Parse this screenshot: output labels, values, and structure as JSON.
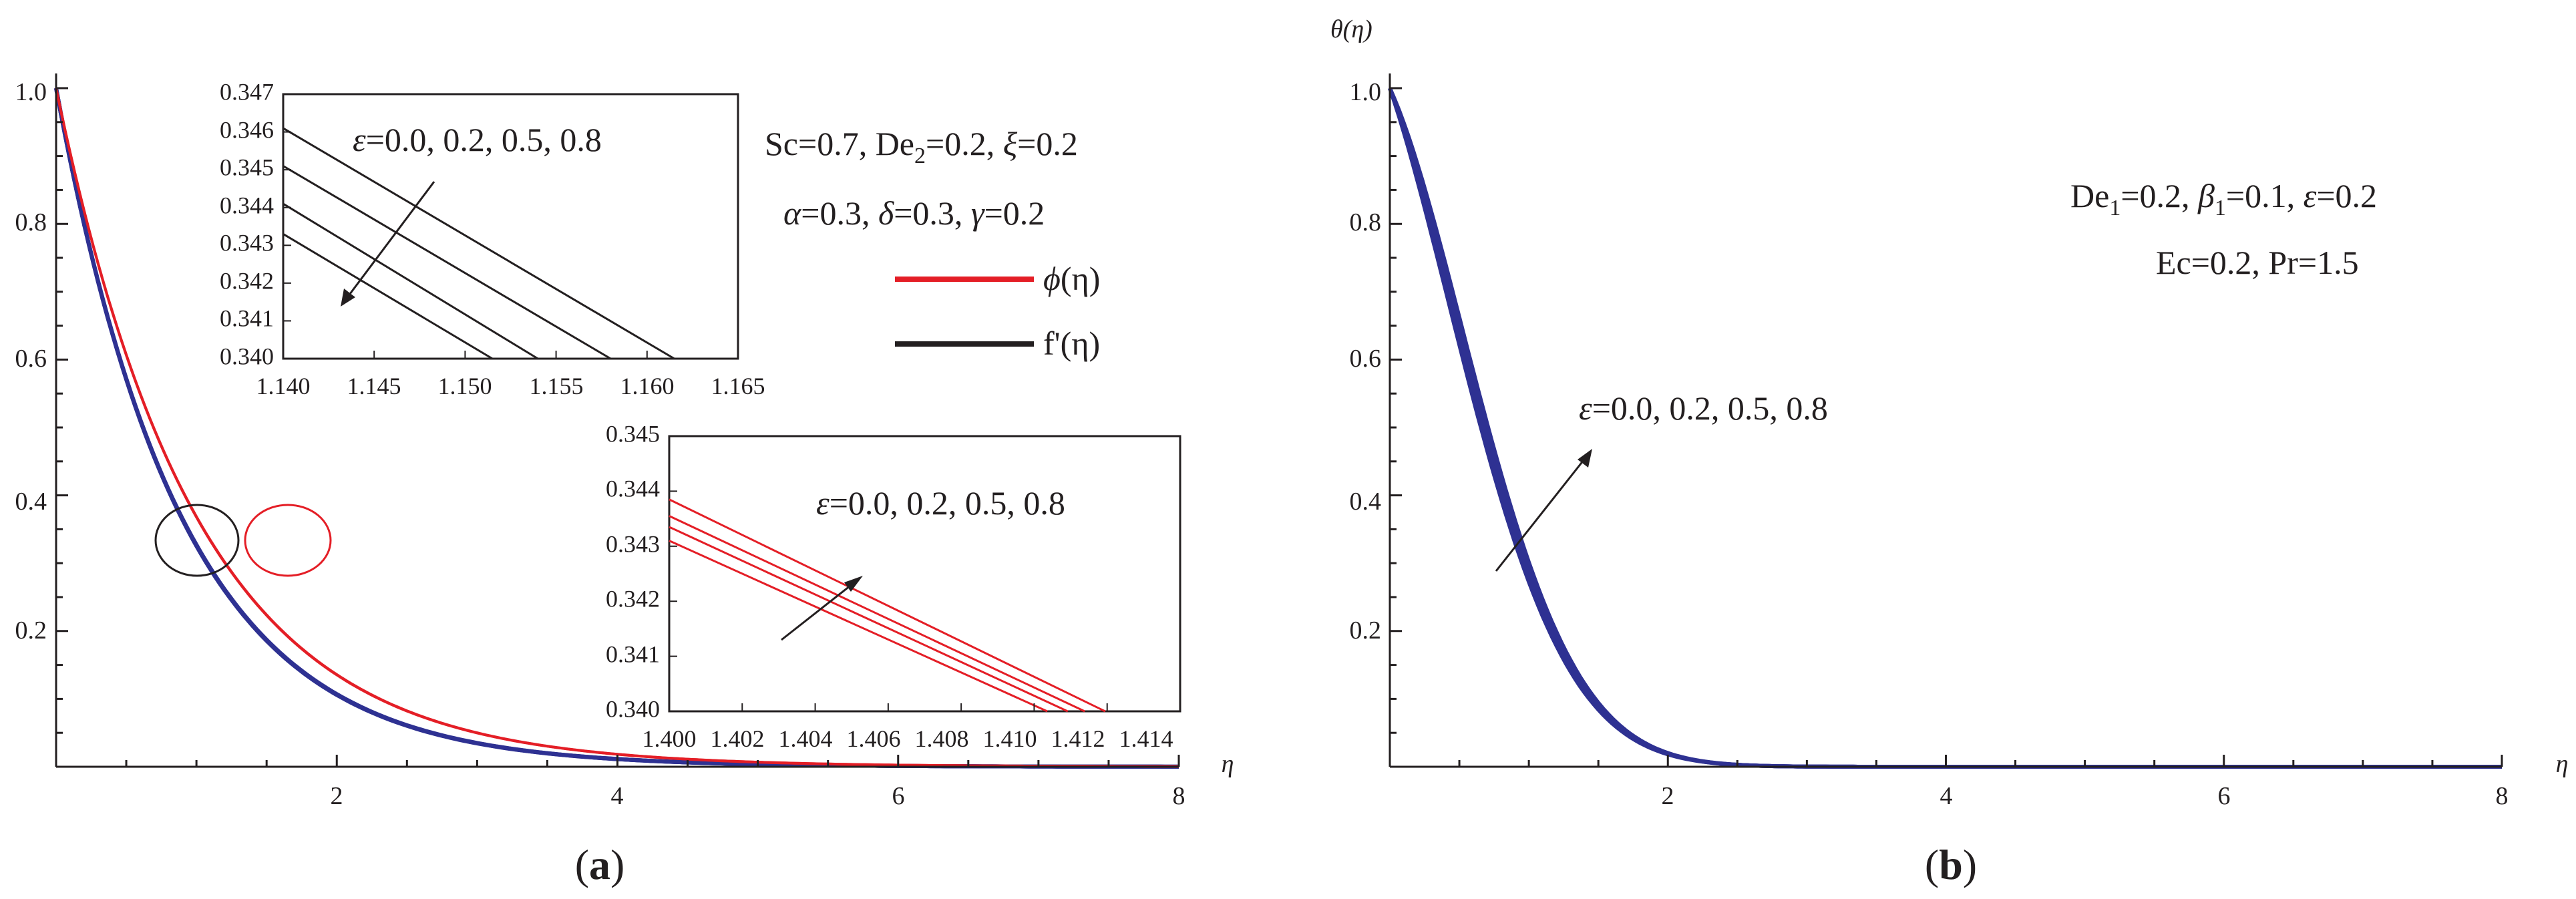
{
  "chart_data": [
    {
      "panel": "a",
      "type": "line",
      "panel_label": {
        "pre": "(",
        "letter": "a",
        "post": ")"
      },
      "xlabel": "η",
      "ylabel": "",
      "xlim": [
        0,
        8
      ],
      "ylim": [
        0,
        1.0
      ],
      "xticks": [
        "2",
        "4",
        "6",
        "8"
      ],
      "yticks": [
        "0.2",
        "0.4",
        "0.6",
        "0.8",
        "1.0"
      ],
      "params_line1": {
        "sc": "Sc=0.7, De",
        "sub": "2",
        "rest": "=0.2, ",
        "xi": "ξ",
        "xival": "=0.2"
      },
      "params_line2": {
        "a": "α",
        "aval": "=0.3, ",
        "d": "δ",
        "dval": "=0.3, ",
        "g": "γ",
        "gval": "=0.2"
      },
      "legend": [
        {
          "label_func": "ϕ",
          "label_arg": "(η)",
          "color": "#e41e26"
        },
        {
          "label_func": "f'",
          "label_arg": "(η)",
          "color": "#231f20"
        }
      ],
      "eps_label": {
        "sym": "ε",
        "text": "=0.0, 0.2, 0.5, 0.8"
      },
      "series": [
        {
          "name": "f'(η) ε=0.0",
          "color": "#2e3192",
          "decay": 1.123
        },
        {
          "name": "f'(η) ε=0.2",
          "color": "#2e3192",
          "decay": 1.121
        },
        {
          "name": "f'(η) ε=0.5",
          "color": "#2e3192",
          "decay": 1.119
        },
        {
          "name": "f'(η) ε=0.8",
          "color": "#2e3192",
          "decay": 1.117
        },
        {
          "name": "ϕ(η) ε=0.0",
          "color": "#e41e26",
          "decay": 1.0
        },
        {
          "name": "ϕ(η) ε=0.2",
          "color": "#e41e26",
          "decay": 0.998
        }
      ],
      "markers": [
        {
          "name": "black-ellipse",
          "center": [
            1.0,
            0.33
          ],
          "color": "#231f20"
        },
        {
          "name": "red-ellipse",
          "center": [
            1.65,
            0.33
          ],
          "color": "#e41e26"
        }
      ],
      "inset_top": {
        "xlim": [
          1.14,
          1.165
        ],
        "ylim": [
          0.34,
          0.347
        ],
        "xticks": [
          "1.140",
          "1.145",
          "1.150",
          "1.155",
          "1.160",
          "1.165"
        ],
        "yticks": [
          "0.340",
          "0.341",
          "0.342",
          "0.343",
          "0.344",
          "0.345",
          "0.346",
          "0.347"
        ],
        "color": "#231f20",
        "lines": [
          {
            "y0": 0.3433,
            "x_end": 1.1515
          },
          {
            "y0": 0.3441,
            "x_end": 1.154
          },
          {
            "y0": 0.3451,
            "x_end": 1.158
          },
          {
            "y0": 0.3461,
            "x_end": 1.1615
          }
        ]
      },
      "inset_bottom": {
        "xlim": [
          1.4,
          1.415
        ],
        "ylim": [
          0.34,
          0.345
        ],
        "xticks": [
          "1.400",
          "1.402",
          "1.404",
          "1.406",
          "1.408",
          "1.410",
          "1.412",
          "1.414"
        ],
        "yticks": [
          "0.340",
          "0.341",
          "0.342",
          "0.343",
          "0.344",
          "0.345"
        ],
        "color": "#e41e26",
        "lines": [
          {
            "y0": 0.34385,
            "x_end": 1.4128
          },
          {
            "y0": 0.34355,
            "x_end": 1.4122
          },
          {
            "y0": 0.34335,
            "x_end": 1.4117
          },
          {
            "y0": 0.3431,
            "x_end": 1.4111
          }
        ]
      }
    },
    {
      "panel": "b",
      "type": "line",
      "panel_label": {
        "pre": "(",
        "letter": "b",
        "post": ")"
      },
      "title": "θ(η)",
      "xlabel": "η",
      "xlim": [
        0,
        8
      ],
      "ylim": [
        0,
        1.0
      ],
      "xticks": [
        "2",
        "4",
        "6",
        "8"
      ],
      "yticks": [
        "0.2",
        "0.4",
        "0.6",
        "0.8",
        "1.0"
      ],
      "params_line1": {
        "de": "De",
        "sub": "1",
        "rest": "=0.2, ",
        "beta": "β",
        "bsub": "1",
        "bval": "=0.1, ",
        "eps": "ε",
        "epsval": "=0.2"
      },
      "params_line2": "Ec=0.2, Pr=1.5",
      "eps_label": {
        "sym": "ε",
        "text": "=0.0, 0.2, 0.5, 0.8"
      },
      "series": [
        {
          "name": "θ(η) ε=0.0",
          "color": "#2e3192",
          "a": 0.6,
          "b": 0.7
        },
        {
          "name": "θ(η) ε=0.2",
          "color": "#2e3192",
          "a": 0.54,
          "b": 0.72
        },
        {
          "name": "θ(η) ε=0.5",
          "color": "#2e3192",
          "a": 0.49,
          "b": 0.74
        },
        {
          "name": "θ(η) ε=0.8",
          "color": "#2e3192",
          "a": 0.45,
          "b": 0.75
        }
      ]
    }
  ]
}
